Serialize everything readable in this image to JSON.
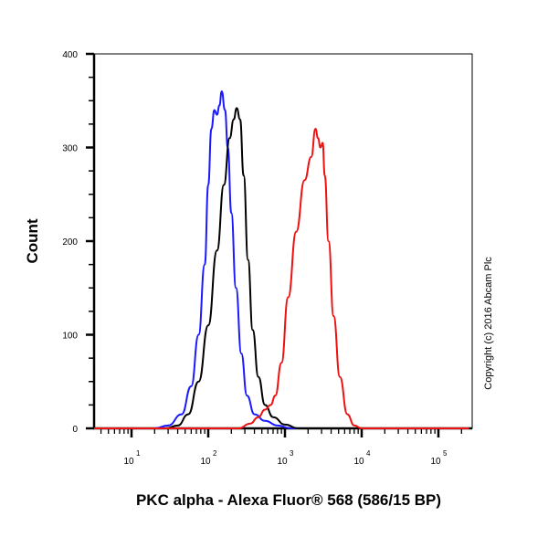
{
  "chart_data": {
    "type": "line",
    "title": "",
    "xlabel": "PKC alpha - Alexa Fluor® 568 (586/15 BP)",
    "ylabel": "Count",
    "x_scale": "log",
    "xlim": [
      3,
      250000
    ],
    "ylim": [
      0,
      400
    ],
    "grid": false,
    "legend": "none",
    "yticks": [
      0,
      100,
      200,
      300,
      400
    ],
    "ytick_labels": [
      "0",
      "100",
      "200",
      "300",
      "400"
    ],
    "xticks": [
      10,
      100,
      1000,
      10000,
      100000
    ],
    "xtick_labels": [
      {
        "base": "10",
        "exp": "1"
      },
      {
        "base": "10",
        "exp": "2"
      },
      {
        "base": "10",
        "exp": "3"
      },
      {
        "base": "10",
        "exp": "4"
      },
      {
        "base": "10",
        "exp": "5"
      }
    ],
    "annotation": "Copyright (c) 2016 Abcam Plc",
    "series": [
      {
        "name": "blue",
        "color": "#1a1aff",
        "x": [
          3,
          20,
          30,
          45,
          60,
          75,
          90,
          100,
          110,
          120,
          130,
          140,
          150,
          165,
          180,
          200,
          230,
          270,
          320,
          400,
          550,
          800,
          1200,
          250000
        ],
        "y": [
          0,
          0,
          3,
          15,
          45,
          100,
          175,
          260,
          320,
          340,
          335,
          345,
          360,
          340,
          300,
          230,
          150,
          80,
          35,
          15,
          8,
          3,
          0,
          0
        ]
      },
      {
        "name": "black",
        "color": "#000000",
        "x": [
          3,
          28,
          40,
          55,
          75,
          100,
          130,
          160,
          190,
          215,
          235,
          260,
          290,
          330,
          380,
          450,
          550,
          700,
          1000,
          1500,
          250000
        ],
        "y": [
          0,
          0,
          3,
          15,
          50,
          110,
          190,
          260,
          310,
          330,
          342,
          330,
          270,
          180,
          105,
          55,
          25,
          12,
          4,
          0,
          0
        ]
      },
      {
        "name": "red",
        "color": "#ee1111",
        "x": [
          3,
          250,
          350,
          450,
          550,
          650,
          750,
          900,
          1100,
          1400,
          1800,
          2200,
          2500,
          2700,
          2900,
          3100,
          3300,
          3700,
          4300,
          5200,
          6500,
          8000,
          10000,
          250000
        ],
        "y": [
          0,
          0,
          5,
          12,
          20,
          25,
          35,
          70,
          140,
          210,
          265,
          290,
          320,
          310,
          300,
          305,
          270,
          200,
          120,
          55,
          15,
          3,
          0,
          0
        ]
      }
    ]
  }
}
